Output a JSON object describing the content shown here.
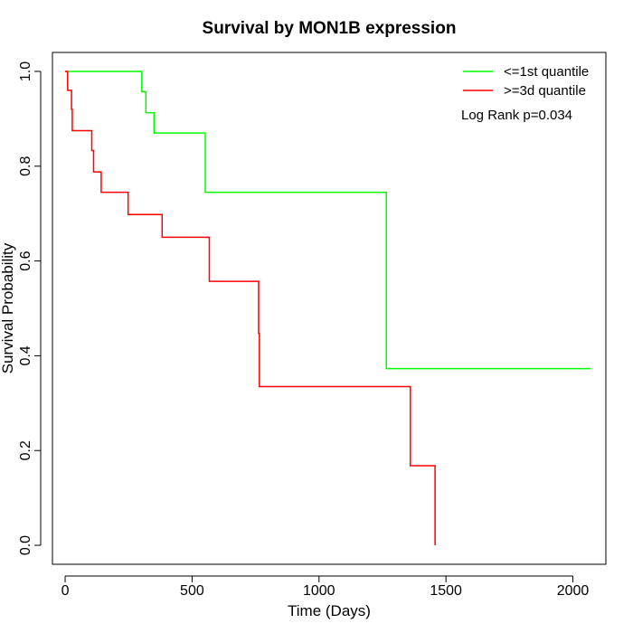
{
  "chart_data": {
    "type": "line",
    "title": "Survival by MON1B expression",
    "xlabel": "Time (Days)",
    "ylabel": "Survival Probability",
    "xlim": [
      -50,
      2130
    ],
    "ylim": [
      -0.04,
      1.04
    ],
    "xticks": [
      0,
      500,
      1000,
      1500,
      2000
    ],
    "yticks": [
      0.0,
      0.2,
      0.4,
      0.6,
      0.8,
      1.0
    ],
    "xtick_labels": [
      "0",
      "500",
      "1000",
      "1500",
      "2000"
    ],
    "ytick_labels": [
      "0.0",
      "0.2",
      "0.4",
      "0.6",
      "0.8",
      "1.0"
    ],
    "legend_position": "top-right",
    "annotation": "Log Rank p=0.034",
    "series": [
      {
        "name": "<=1st quantile",
        "color": "#00ff00",
        "step_points": [
          [
            0,
            1.0
          ],
          [
            302,
            1.0
          ],
          [
            302,
            0.957
          ],
          [
            318,
            0.957
          ],
          [
            318,
            0.913
          ],
          [
            350,
            0.913
          ],
          [
            350,
            0.87
          ],
          [
            552,
            0.87
          ],
          [
            552,
            0.745
          ],
          [
            1265,
            0.745
          ],
          [
            1265,
            0.373
          ],
          [
            2070,
            0.373
          ]
        ]
      },
      {
        "name": ">=3d quantile",
        "color": "#ff0000",
        "step_points": [
          [
            0,
            1.0
          ],
          [
            10,
            1.0
          ],
          [
            10,
            0.96
          ],
          [
            25,
            0.96
          ],
          [
            25,
            0.92
          ],
          [
            28,
            0.92
          ],
          [
            28,
            0.875
          ],
          [
            105,
            0.875
          ],
          [
            105,
            0.833
          ],
          [
            112,
            0.833
          ],
          [
            112,
            0.788
          ],
          [
            142,
            0.788
          ],
          [
            142,
            0.745
          ],
          [
            248,
            0.745
          ],
          [
            248,
            0.698
          ],
          [
            382,
            0.698
          ],
          [
            382,
            0.65
          ],
          [
            568,
            0.65
          ],
          [
            568,
            0.557
          ],
          [
            762,
            0.557
          ],
          [
            762,
            0.447
          ],
          [
            765,
            0.447
          ],
          [
            765,
            0.335
          ],
          [
            1360,
            0.335
          ],
          [
            1360,
            0.168
          ],
          [
            1457,
            0.168
          ],
          [
            1457,
            0.0
          ]
        ]
      }
    ]
  }
}
